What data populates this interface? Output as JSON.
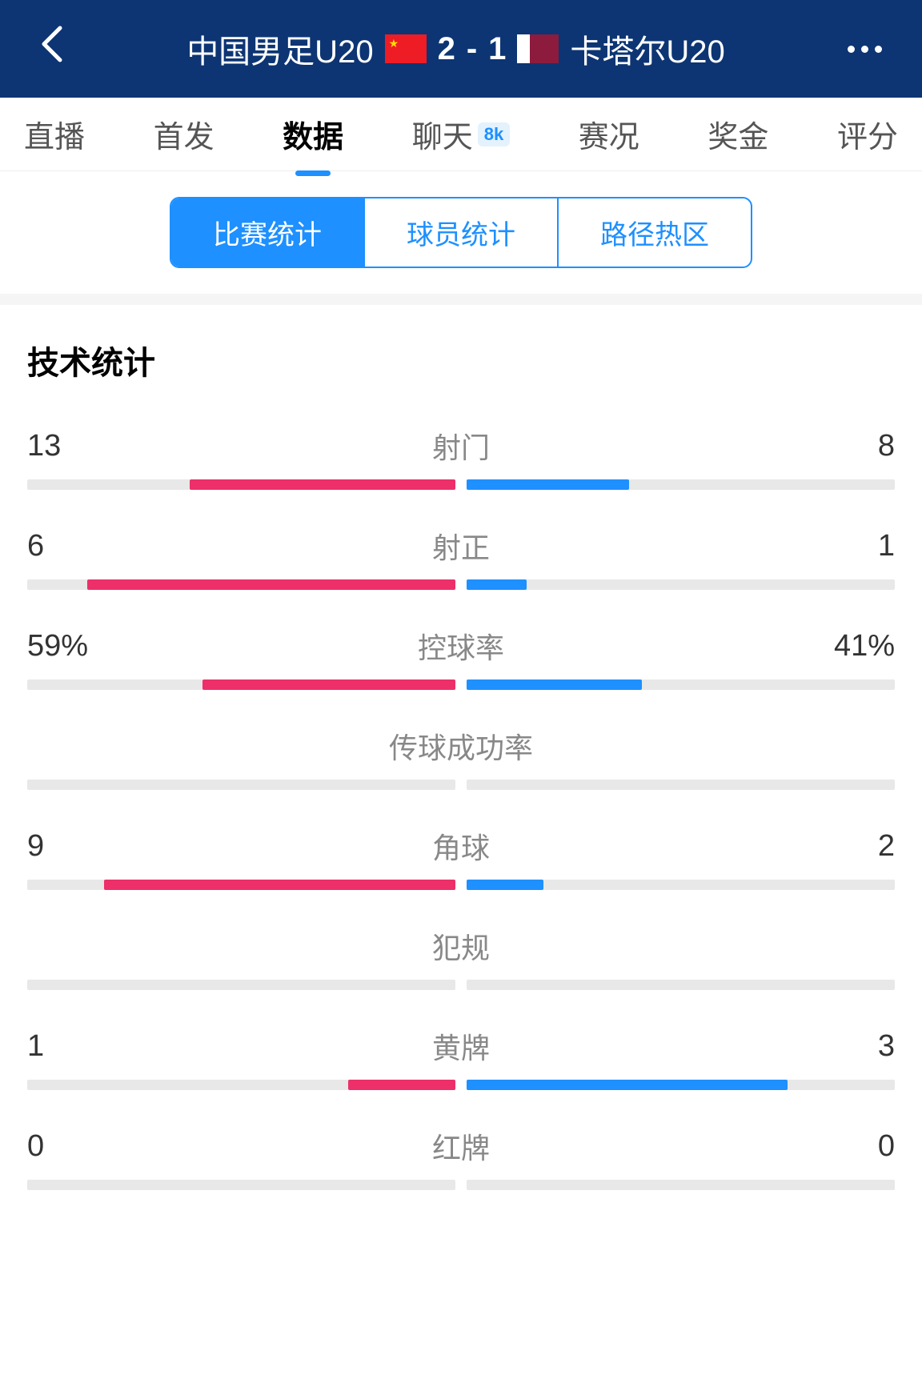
{
  "header": {
    "team_home": "中国男足U20",
    "team_away": "卡塔尔U20",
    "score_home": "2",
    "score_away": "1",
    "score_separator": "-"
  },
  "tabs": [
    {
      "label": "直播",
      "active": false
    },
    {
      "label": "首发",
      "active": false
    },
    {
      "label": "数据",
      "active": true
    },
    {
      "label": "聊天",
      "active": false,
      "badge": "8k"
    },
    {
      "label": "赛况",
      "active": false
    },
    {
      "label": "奖金",
      "active": false
    },
    {
      "label": "评分",
      "active": false
    }
  ],
  "sub_tabs": [
    {
      "label": "比赛统计",
      "active": true
    },
    {
      "label": "球员统计",
      "active": false
    },
    {
      "label": "路径热区",
      "active": false
    }
  ],
  "section_title": "技术统计",
  "colors": {
    "home_bar": "#ed2f6a",
    "away_bar": "#1e90ff",
    "bar_bg": "#e8e8e8"
  },
  "stats": [
    {
      "name": "射门",
      "home": "13",
      "away": "8",
      "home_pct": 62,
      "away_pct": 38
    },
    {
      "name": "射正",
      "home": "6",
      "away": "1",
      "home_pct": 86,
      "away_pct": 14
    },
    {
      "name": "控球率",
      "home": "59%",
      "away": "41%",
      "home_pct": 59,
      "away_pct": 41
    },
    {
      "name": "传球成功率",
      "home": "",
      "away": "",
      "home_pct": 0,
      "away_pct": 0
    },
    {
      "name": "角球",
      "home": "9",
      "away": "2",
      "home_pct": 82,
      "away_pct": 18
    },
    {
      "name": "犯规",
      "home": "",
      "away": "",
      "home_pct": 0,
      "away_pct": 0
    },
    {
      "name": "黄牌",
      "home": "1",
      "away": "3",
      "home_pct": 25,
      "away_pct": 75
    },
    {
      "name": "红牌",
      "home": "0",
      "away": "0",
      "home_pct": 0,
      "away_pct": 0
    }
  ]
}
